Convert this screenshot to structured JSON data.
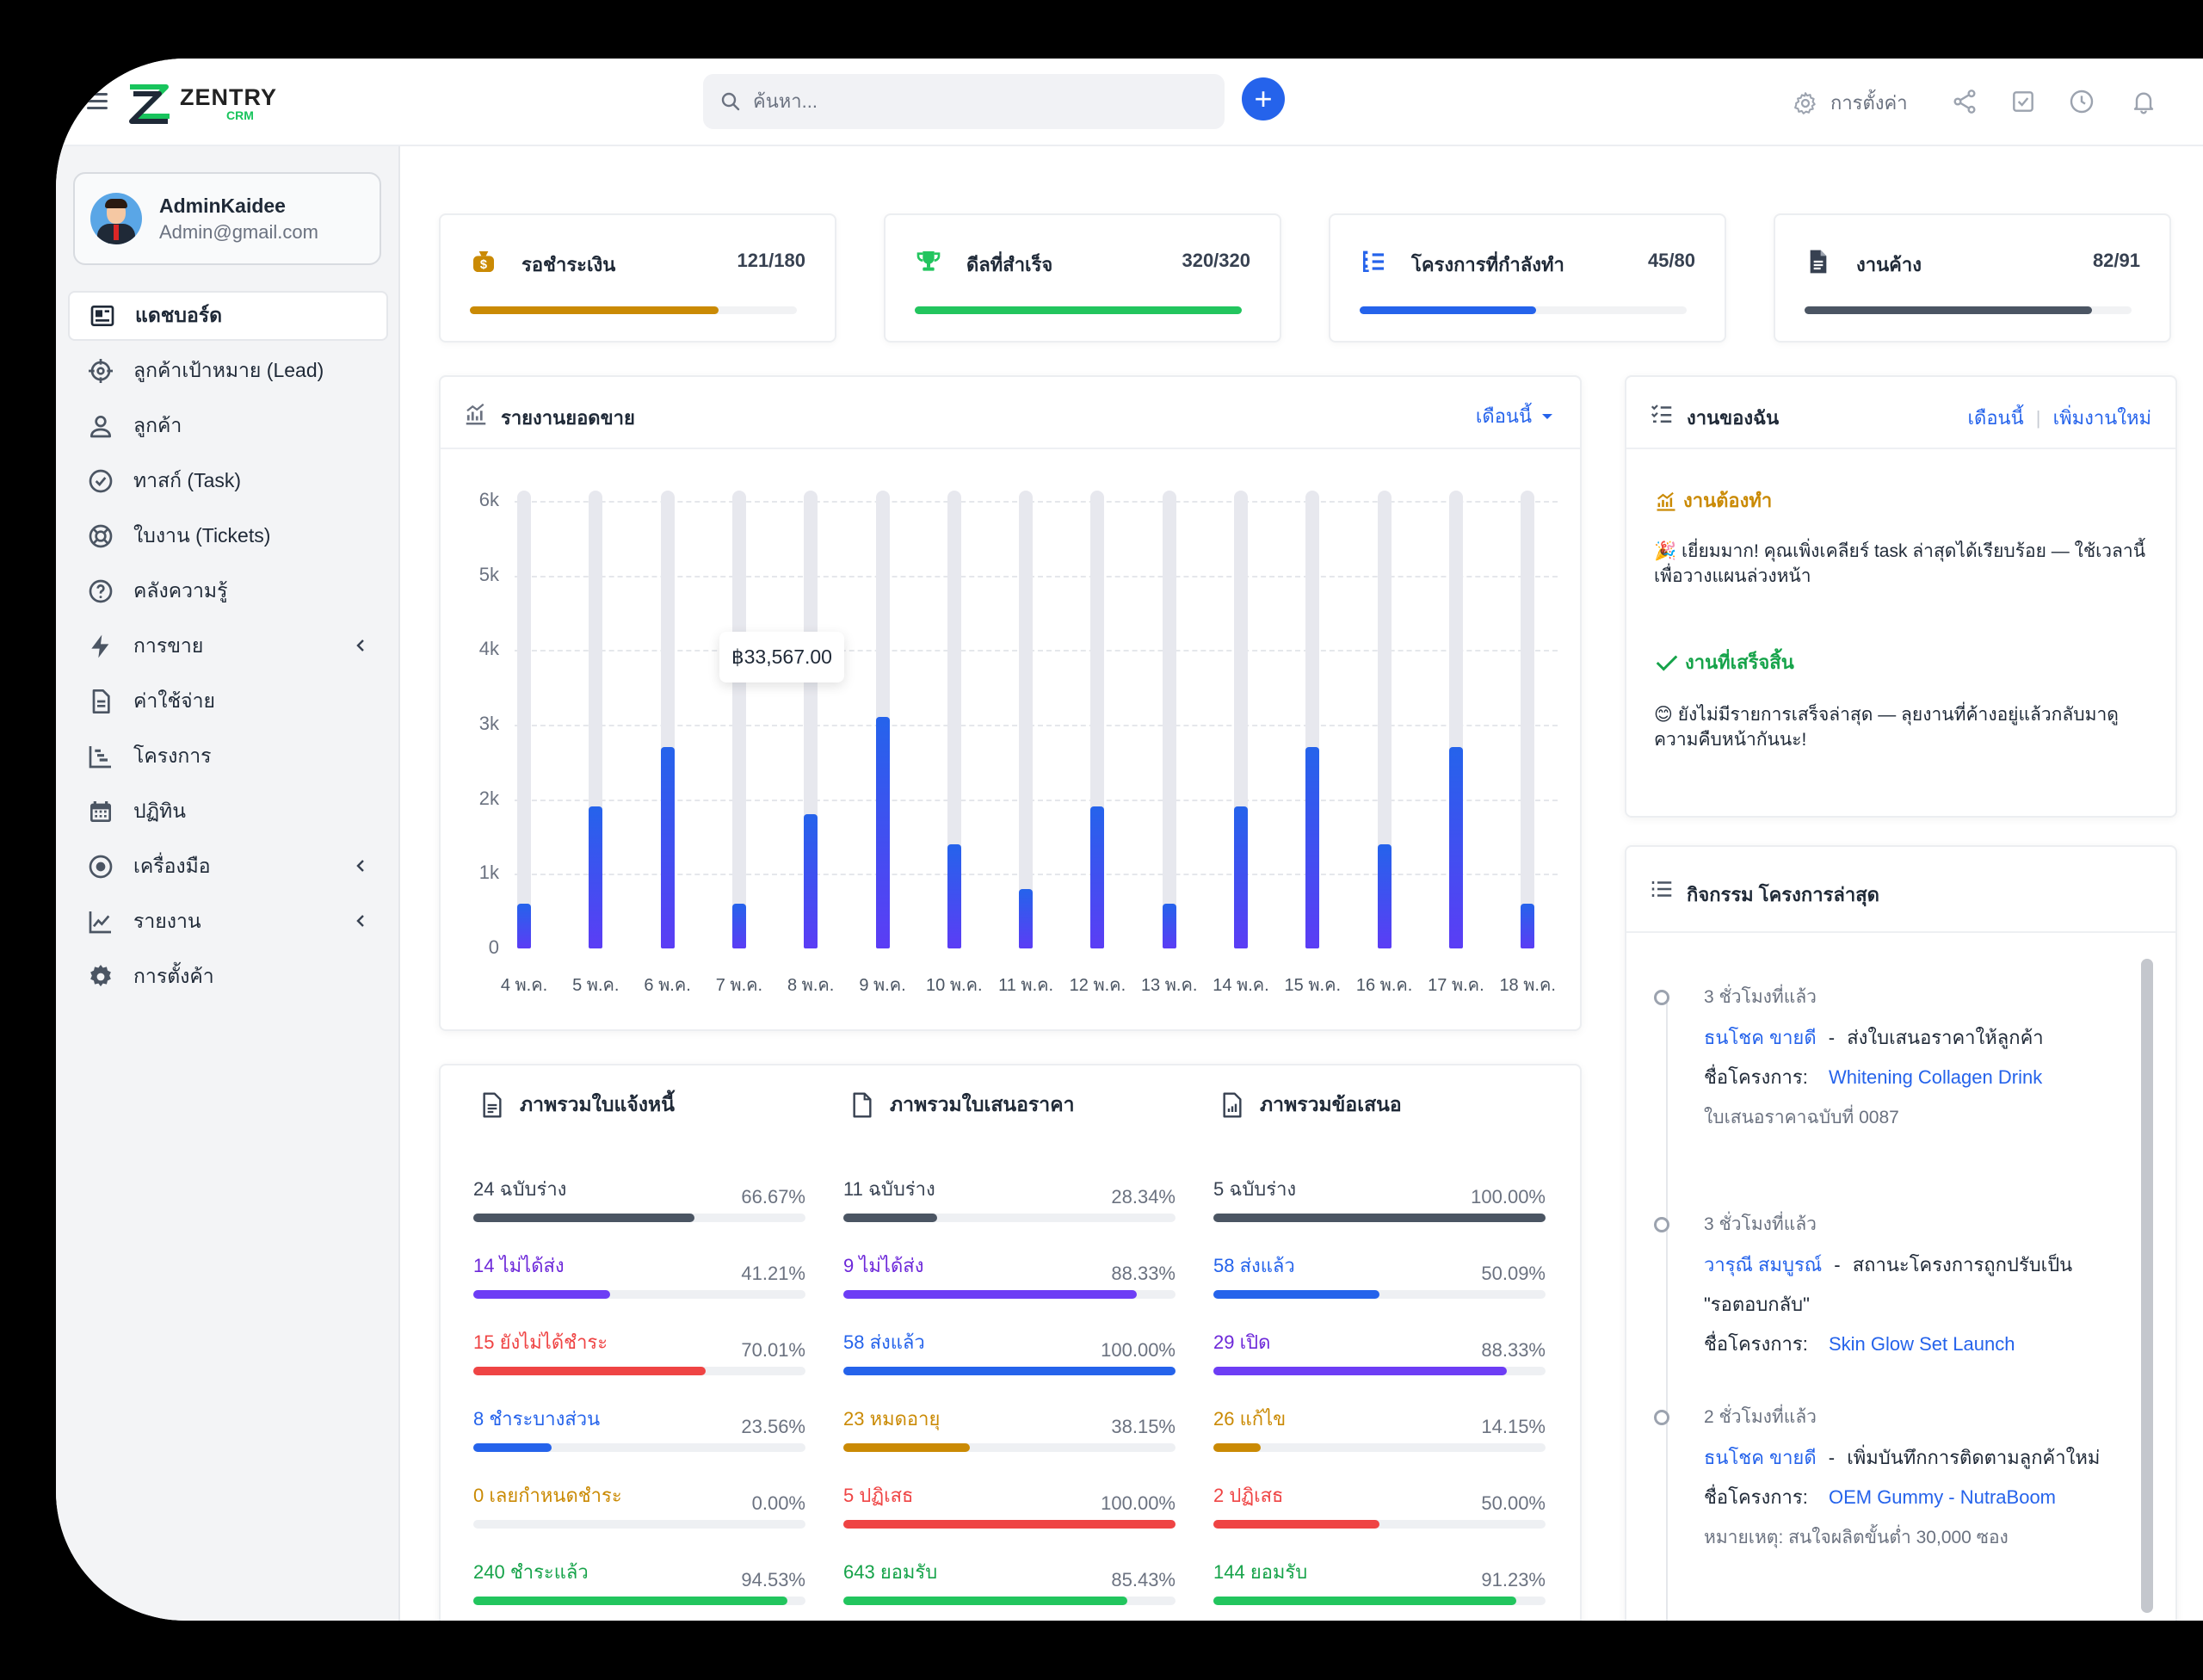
{
  "app": {
    "logo_name": "ZENTRY",
    "logo_sub": "CRM"
  },
  "topbar": {
    "search_placeholder": "ค้นหา...",
    "add_label": "+",
    "settings_label": "การตั้งค่า",
    "icons": [
      "share-icon",
      "checkbox-icon",
      "clock-icon",
      "bell-icon"
    ]
  },
  "user": {
    "name": "AdminKaidee",
    "email": "Admin@gmail.com"
  },
  "sidebar": {
    "items": [
      {
        "label": "แดชบอร์ด",
        "icon": "dashboard-icon",
        "active": true
      },
      {
        "label": "ลูกค้าเป้าหมาย (Lead)",
        "icon": "crosshair-icon"
      },
      {
        "label": "ลูกค้า",
        "icon": "user-icon"
      },
      {
        "label": "ทาสก์ (Task)",
        "icon": "check-circle-icon"
      },
      {
        "label": "ใบงาน (Tickets)",
        "icon": "lifebuoy-icon"
      },
      {
        "label": "คลังความรู้",
        "icon": "question-circle-icon"
      },
      {
        "label": "การขาย",
        "icon": "bolt-icon",
        "expandable": true
      },
      {
        "label": "ค่าใช้จ่าย",
        "icon": "file-icon"
      },
      {
        "label": "โครงการ",
        "icon": "gantt-icon"
      },
      {
        "label": "ปฏิทิน",
        "icon": "calendar-icon"
      },
      {
        "label": "เครื่องมือ",
        "icon": "target-icon",
        "expandable": true
      },
      {
        "label": "รายงาน",
        "icon": "line-chart-icon",
        "expandable": true
      },
      {
        "label": "การตั้งค้า",
        "icon": "gear-icon"
      }
    ]
  },
  "stats": [
    {
      "label": "รอชำระเงิน",
      "value": "121/180",
      "progress": 0.76,
      "color": "#ca8a04",
      "icon": "money-bag-icon"
    },
    {
      "label": "ดีลที่สำเร็จ",
      "value": "320/320",
      "progress": 1.0,
      "color": "#22c55e",
      "icon": "trophy-icon"
    },
    {
      "label": "โครงการที่กำลังทำ",
      "value": "45/80",
      "progress": 0.54,
      "color": "#2563eb",
      "icon": "tasks-list-icon"
    },
    {
      "label": "งานค้าง",
      "value": "82/91",
      "progress": 0.88,
      "color": "#4b5563",
      "icon": "document-icon"
    }
  ],
  "sales_report": {
    "title": "รายงานยอดขาย",
    "period": "เดือนนี้",
    "tooltip": "฿33,567.00"
  },
  "chart_data": {
    "type": "bar",
    "categories": [
      "4 พ.ค.",
      "5 พ.ค.",
      "6 พ.ค.",
      "7 พ.ค.",
      "8 พ.ค.",
      "9 พ.ค.",
      "10 พ.ค.",
      "11 พ.ค.",
      "12 พ.ค.",
      "13 พ.ค.",
      "14 พ.ค.",
      "15 พ.ค.",
      "16 พ.ค.",
      "17 พ.ค.",
      "18 พ.ค."
    ],
    "values": [
      600,
      1900,
      2700,
      600,
      1800,
      3100,
      1400,
      800,
      1900,
      600,
      1900,
      2700,
      1400,
      2700,
      600
    ],
    "y_ticks": [
      "0",
      "1k",
      "2k",
      "3k",
      "4k",
      "5k",
      "6k"
    ],
    "ylim": [
      0,
      6000
    ],
    "grid": true
  },
  "my_tasks": {
    "title": "งานของฉัน",
    "period": "เดือนนี้",
    "separator": "|",
    "add_new": "เพิ่มงานใหม่",
    "todo_heading": "งานต้องทำ",
    "todo_text": "🎉 เยี่ยมมาก! คุณเพิ่งเคลียร์ task ล่าสุดได้เรียบร้อย — ใช้เวลานี้เพื่อวางแผนล่วงหน้า",
    "done_heading": "งานที่เสร็จสิ้น",
    "done_text": "😊 ยังไม่มีรายการเสร็จล่าสุด — ลุยงานที่ค้างอยู่แล้วกลับมาดูความคืบหน้ากันนะ!"
  },
  "activity": {
    "title": "กิจกรรม โครงการล่าสุด",
    "project_label": "ชื่อโครงการ:",
    "items": [
      {
        "time": "3 ชั่วโมงที่แล้ว",
        "user": "ธนโชค ขายดี",
        "dash": "-",
        "action": "ส่งใบเสนอราคาให้ลูกค้า",
        "project": "Whitening Collagen Drink",
        "note": "ใบเสนอราคาฉบับที่ 0087"
      },
      {
        "time": "3 ชั่วโมงที่แล้ว",
        "user": "วารุณี สมบูรณ์",
        "dash": "-",
        "action": "สถานะโครงการถูกปรับเป็น",
        "action2": "\"รอตอบกลับ\"",
        "project": "Skin Glow Set Launch"
      },
      {
        "time": "2 ชั่วโมงที่แล้ว",
        "user": "ธนโชค ขายดี",
        "dash": "-",
        "action": "เพิ่มบันทึกการติดตามลูกค้าใหม่",
        "project": "OEM Gummy - NutraBoom",
        "note": "หมายเหตุ: สนใจผลิตขั้นต่ำ 30,000 ซอง"
      }
    ]
  },
  "overview": [
    {
      "title": "ภาพรวมใบแจ้งหนี้",
      "icon": "invoice-icon",
      "rows": [
        {
          "label": "24 ฉบับร่าง",
          "pct": "66.67%",
          "value": 0.6667,
          "color": "#4b5563",
          "text_color": "#374151"
        },
        {
          "label": "14 ไม่ได้ส่ง",
          "pct": "41.21%",
          "value": 0.4121,
          "color": "#6d3df5",
          "text_color": "#6d28d9"
        },
        {
          "label": "15 ยังไม่ได้ชำระ",
          "pct": "70.01%",
          "value": 0.7001,
          "color": "#ef4444",
          "text_color": "#ef4444"
        },
        {
          "label": "8 ชำระบางส่วน",
          "pct": "23.56%",
          "value": 0.2356,
          "color": "#2563eb",
          "text_color": "#2563eb"
        },
        {
          "label": "0 เลยกำหนดชำระ",
          "pct": "0.00%",
          "value": 0.0,
          "color": "#ca8a04",
          "text_color": "#ca8a04"
        },
        {
          "label": "240 ชำระแล้ว",
          "pct": "94.53%",
          "value": 0.9453,
          "color": "#22c55e",
          "text_color": "#16a34a"
        }
      ]
    },
    {
      "title": "ภาพรวมใบเสนอราคา",
      "icon": "quote-file-icon",
      "rows": [
        {
          "label": "11 ฉบับร่าง",
          "pct": "28.34%",
          "value": 0.2834,
          "color": "#4b5563",
          "text_color": "#374151"
        },
        {
          "label": "9 ไม่ได้ส่ง",
          "pct": "88.33%",
          "value": 0.8833,
          "color": "#6d3df5",
          "text_color": "#6d28d9"
        },
        {
          "label": "58 ส่งแล้ว",
          "pct": "100.00%",
          "value": 1.0,
          "color": "#2563eb",
          "text_color": "#2563eb"
        },
        {
          "label": "23 หมดอายุ",
          "pct": "38.15%",
          "value": 0.3815,
          "color": "#ca8a04",
          "text_color": "#ca8a04"
        },
        {
          "label": "5 ปฏิเสธ",
          "pct": "100.00%",
          "value": 1.0,
          "color": "#ef4444",
          "text_color": "#ef4444"
        },
        {
          "label": "643 ยอมรับ",
          "pct": "85.43%",
          "value": 0.8543,
          "color": "#22c55e",
          "text_color": "#16a34a"
        }
      ]
    },
    {
      "title": "ภาพรวมข้อเสนอ",
      "icon": "proposal-chart-icon",
      "rows": [
        {
          "label": "5 ฉบับร่าง",
          "pct": "100.00%",
          "value": 1.0,
          "color": "#4b5563",
          "text_color": "#374151"
        },
        {
          "label": "58 ส่งแล้ว",
          "pct": "50.09%",
          "value": 0.5009,
          "color": "#2563eb",
          "text_color": "#2563eb"
        },
        {
          "label": "29 เปิด",
          "pct": "88.33%",
          "value": 0.8833,
          "color": "#6d3df5",
          "text_color": "#6d28d9"
        },
        {
          "label": "26 แก้ไข",
          "pct": "14.15%",
          "value": 0.1415,
          "color": "#ca8a04",
          "text_color": "#ca8a04"
        },
        {
          "label": "2 ปฏิเสธ",
          "pct": "50.00%",
          "value": 0.5,
          "color": "#ef4444",
          "text_color": "#ef4444"
        },
        {
          "label": "144 ยอมรับ",
          "pct": "91.23%",
          "value": 0.9123,
          "color": "#22c55e",
          "text_color": "#16a34a"
        }
      ]
    }
  ]
}
